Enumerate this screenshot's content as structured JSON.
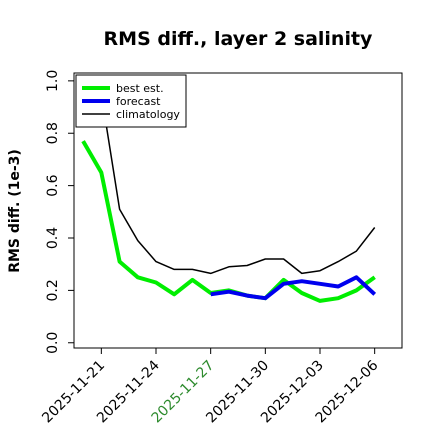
{
  "chart_data": {
    "type": "line",
    "title": "RMS diff., layer 2 salinity",
    "xlabel": "",
    "ylabel": "RMS diff. (1e-3)",
    "ylim": [
      -0.02,
      1.03
    ],
    "yticks": [
      "0.0",
      "0.2",
      "0.4",
      "0.6",
      "0.8",
      "1.0"
    ],
    "ytick_values": [
      0.0,
      0.2,
      0.4,
      0.6,
      0.8,
      1.0
    ],
    "x_range": [
      "2025-11-19T12",
      "2025-12-07T12"
    ],
    "xticks": [
      {
        "label": "2025-11-21",
        "date": "2025-11-21",
        "color": "#000000"
      },
      {
        "label": "2025-11-24",
        "date": "2025-11-24",
        "color": "#000000"
      },
      {
        "label": "2025-11-27",
        "date": "2025-11-27",
        "color": "#2e8b2e"
      },
      {
        "label": "2025-11-30",
        "date": "2025-11-30",
        "color": "#000000"
      },
      {
        "label": "2025-12-03",
        "date": "2025-12-03",
        "color": "#000000"
      },
      {
        "label": "2025-12-06",
        "date": "2025-12-06",
        "color": "#000000"
      }
    ],
    "grid": false,
    "legend_position": "top-left",
    "series": [
      {
        "name": "best est.",
        "color": "#00ee00",
        "width": 4,
        "points": [
          [
            "2025-11-20",
            0.77
          ],
          [
            "2025-11-21",
            0.65
          ],
          [
            "2025-11-22",
            0.31
          ],
          [
            "2025-11-23",
            0.25
          ],
          [
            "2025-11-24",
            0.23
          ],
          [
            "2025-11-25",
            0.185
          ],
          [
            "2025-11-26",
            0.24
          ],
          [
            "2025-11-27",
            0.19
          ],
          [
            "2025-11-28",
            0.2
          ],
          [
            "2025-11-29",
            0.18
          ],
          [
            "2025-11-30",
            0.17
          ],
          [
            "2025-12-01",
            0.24
          ],
          [
            "2025-12-02",
            0.19
          ],
          [
            "2025-12-03",
            0.16
          ],
          [
            "2025-12-04",
            0.17
          ],
          [
            "2025-12-05",
            0.2
          ],
          [
            "2025-12-06",
            0.25
          ]
        ]
      },
      {
        "name": "forecast",
        "color": "#0000ee",
        "width": 4,
        "points": [
          [
            "2025-11-27",
            0.185
          ],
          [
            "2025-11-28",
            0.195
          ],
          [
            "2025-11-29",
            0.18
          ],
          [
            "2025-11-30",
            0.17
          ],
          [
            "2025-12-01",
            0.225
          ],
          [
            "2025-12-02",
            0.235
          ],
          [
            "2025-12-03",
            0.225
          ],
          [
            "2025-12-04",
            0.215
          ],
          [
            "2025-12-05",
            0.25
          ],
          [
            "2025-12-06",
            0.185
          ]
        ]
      },
      {
        "name": "climatology",
        "color": "#000000",
        "width": 1.5,
        "points": [
          [
            "2025-11-21",
            0.95
          ],
          [
            "2025-11-22",
            0.51
          ],
          [
            "2025-11-23",
            0.39
          ],
          [
            "2025-11-24",
            0.31
          ],
          [
            "2025-11-25",
            0.28
          ],
          [
            "2025-11-26",
            0.28
          ],
          [
            "2025-11-27",
            0.265
          ],
          [
            "2025-11-28",
            0.29
          ],
          [
            "2025-11-29",
            0.295
          ],
          [
            "2025-11-30",
            0.32
          ],
          [
            "2025-12-01",
            0.32
          ],
          [
            "2025-12-02",
            0.265
          ],
          [
            "2025-12-03",
            0.275
          ],
          [
            "2025-12-04",
            0.31
          ],
          [
            "2025-12-05",
            0.35
          ],
          [
            "2025-12-06",
            0.44
          ]
        ]
      }
    ]
  }
}
